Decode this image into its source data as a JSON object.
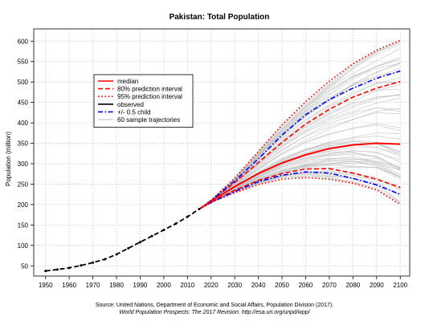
{
  "chart_data": {
    "type": "line",
    "title": "Pakistan: Total Population",
    "ylabel": "Population (million)",
    "xlabel": "",
    "xlim": [
      1945,
      2104
    ],
    "ylim": [
      25,
      630
    ],
    "x_ticks": [
      1950,
      1960,
      1970,
      1980,
      1990,
      2000,
      2010,
      2020,
      2030,
      2040,
      2050,
      2060,
      2070,
      2080,
      2090,
      2100
    ],
    "y_ticks": [
      50,
      100,
      150,
      200,
      250,
      300,
      350,
      400,
      450,
      500,
      550,
      600
    ],
    "grid": true,
    "legend_position": "top-left",
    "legend": [
      {
        "label": "median",
        "color": "#ff0000",
        "style": "solid",
        "width": 1.6
      },
      {
        "label": "80% prediction interval",
        "color": "#ff0000",
        "style": "dashed",
        "width": 1.6
      },
      {
        "label": "95% prediction interval",
        "color": "#ff0000",
        "style": "dotted",
        "width": 1.6
      },
      {
        "label": "observed",
        "color": "#000000",
        "style": "solid",
        "width": 1.6
      },
      {
        "label": "+/- 0.5 child",
        "color": "#0000ff",
        "style": "dashdot",
        "width": 1.6
      },
      {
        "label": "60 sample trajectories",
        "color": "#bbbbbb",
        "style": "solid",
        "width": 1
      }
    ],
    "observed": {
      "x": [
        1950,
        1955,
        1960,
        1965,
        1970,
        1975,
        1980,
        1985,
        1990,
        1995,
        2000,
        2005,
        2010,
        2015
      ],
      "values": [
        37.5,
        41,
        45,
        51,
        58,
        66,
        78,
        93,
        108,
        123,
        138,
        153,
        170,
        189
      ]
    },
    "projection_x": [
      2015,
      2020,
      2030,
      2040,
      2050,
      2060,
      2070,
      2080,
      2090,
      2100
    ],
    "median": [
      189,
      208,
      244,
      276,
      302,
      322,
      337,
      346,
      350,
      348
    ],
    "pi80_upper": [
      189,
      209,
      254,
      303,
      352,
      397,
      433,
      463,
      485,
      501
    ],
    "pi80_lower": [
      189,
      206,
      235,
      259,
      276,
      287,
      288,
      277,
      262,
      242
    ],
    "pi95_upper": [
      189,
      211,
      265,
      330,
      395,
      452,
      502,
      545,
      578,
      602
    ],
    "pi95_lower": [
      189,
      205,
      229,
      249,
      262,
      266,
      262,
      252,
      236,
      200
    ],
    "half_child_upper": [
      189,
      210,
      258,
      312,
      370,
      420,
      457,
      485,
      509,
      527
    ],
    "half_child_lower": [
      189,
      205,
      232,
      256,
      272,
      280,
      277,
      264,
      248,
      225
    ],
    "colors": {
      "median": "#ff0000",
      "interval": "#ff0000",
      "observed": "#000000",
      "half_child": "#0000ff",
      "trajectory": "#bbbbbb",
      "grid": "#c8c8c8",
      "axis": "#000000"
    }
  },
  "source": {
    "line1": "Source: United Nations, Department of Economic and Social Affairs, Population Division (2017).",
    "line2": "World Population Prospects: The 2017 Revision. http://esa.un.org/unpd/wpp/"
  }
}
